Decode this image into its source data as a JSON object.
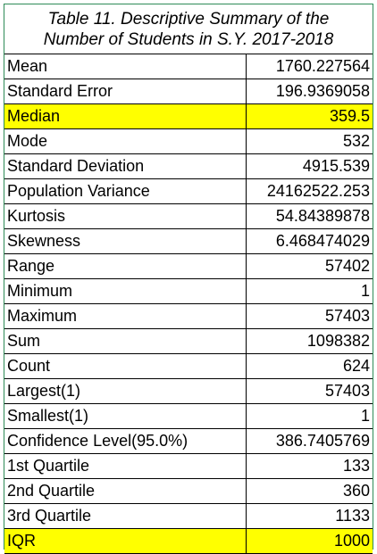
{
  "title": {
    "line1": "Table 11. Descriptive Summary of the",
    "line2": "Number of Students in S.Y. 2017-2018"
  },
  "highlight_color": "#ffff00",
  "rows": [
    {
      "label": "Mean",
      "value": "1760.227564",
      "highlight": false
    },
    {
      "label": "Standard Error",
      "value": "196.9369058",
      "highlight": false
    },
    {
      "label": "Median",
      "value": "359.5",
      "highlight": true
    },
    {
      "label": "Mode",
      "value": "532",
      "highlight": false
    },
    {
      "label": "Standard Deviation",
      "value": "4915.539",
      "highlight": false
    },
    {
      "label": "Population Variance",
      "value": "24162522.253",
      "highlight": false
    },
    {
      "label": "Kurtosis",
      "value": "54.84389878",
      "highlight": false
    },
    {
      "label": "Skewness",
      "value": "6.468474029",
      "highlight": false
    },
    {
      "label": "Range",
      "value": "57402",
      "highlight": false
    },
    {
      "label": "Minimum",
      "value": "1",
      "highlight": false
    },
    {
      "label": "Maximum",
      "value": "57403",
      "highlight": false
    },
    {
      "label": "Sum",
      "value": "1098382",
      "highlight": false
    },
    {
      "label": "Count",
      "value": "624",
      "highlight": false
    },
    {
      "label": "Largest(1)",
      "value": "57403",
      "highlight": false
    },
    {
      "label": "Smallest(1)",
      "value": "1",
      "highlight": false
    },
    {
      "label": "Confidence Level(95.0%)",
      "value": "386.7405769",
      "highlight": false
    },
    {
      "label": "1st Quartile",
      "value": "133",
      "highlight": false
    },
    {
      "label": "2nd Quartile",
      "value": "360",
      "highlight": false
    },
    {
      "label": "3rd Quartile",
      "value": "1133",
      "highlight": false
    },
    {
      "label": "IQR",
      "value": "1000",
      "highlight": true
    }
  ]
}
